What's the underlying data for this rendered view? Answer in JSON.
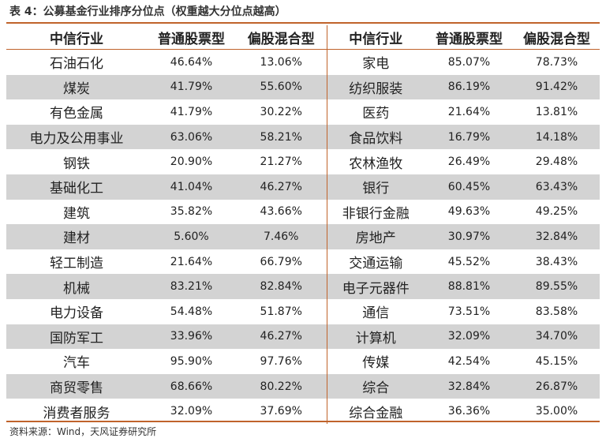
{
  "title": "表 4：公募基金行业排序分位点（权重越大分位点越高）",
  "headers": [
    "中信行业",
    "普通股票型",
    "偏股混合型",
    "中信行业",
    "普通股票型",
    "偏股混合型"
  ],
  "rows": [
    [
      "石油石化",
      "46.64%",
      "13.06%",
      "家电",
      "85.07%",
      "78.73%"
    ],
    [
      "煤炭",
      "41.79%",
      "55.60%",
      "纺织服装",
      "86.19%",
      "91.42%"
    ],
    [
      "有色金属",
      "41.79%",
      "30.22%",
      "医药",
      "21.64%",
      "13.81%"
    ],
    [
      "电力及公用事业",
      "63.06%",
      "58.21%",
      "食品饮料",
      "16.79%",
      "14.18%"
    ],
    [
      "钢铁",
      "20.90%",
      "21.27%",
      "农林渔牧",
      "26.49%",
      "29.48%"
    ],
    [
      "基础化工",
      "41.04%",
      "46.27%",
      "银行",
      "60.45%",
      "63.43%"
    ],
    [
      "建筑",
      "35.82%",
      "43.66%",
      "非银行金融",
      "49.63%",
      "49.25%"
    ],
    [
      "建材",
      "5.60%",
      "7.46%",
      "房地产",
      "30.97%",
      "32.84%"
    ],
    [
      "轻工制造",
      "21.64%",
      "66.79%",
      "交通运输",
      "45.52%",
      "38.43%"
    ],
    [
      "机械",
      "83.21%",
      "82.84%",
      "电子元器件",
      "88.81%",
      "89.55%"
    ],
    [
      "电力设备",
      "54.48%",
      "51.87%",
      "通信",
      "73.51%",
      "83.58%"
    ],
    [
      "国防军工",
      "33.96%",
      "46.27%",
      "计算机",
      "32.09%",
      "34.70%"
    ],
    [
      "汽车",
      "95.90%",
      "97.76%",
      "传媒",
      "42.54%",
      "45.15%"
    ],
    [
      "商贸零售",
      "68.66%",
      "80.22%",
      "综合",
      "32.84%",
      "26.87%"
    ],
    [
      "消费者服务",
      "32.09%",
      "37.69%",
      "综合金融",
      "36.36%",
      "35.00%"
    ]
  ],
  "source": "资料来源：Wind，天风证券研究所",
  "colors": {
    "accent": "#c0632b",
    "stripe": "#d3d3d3"
  }
}
